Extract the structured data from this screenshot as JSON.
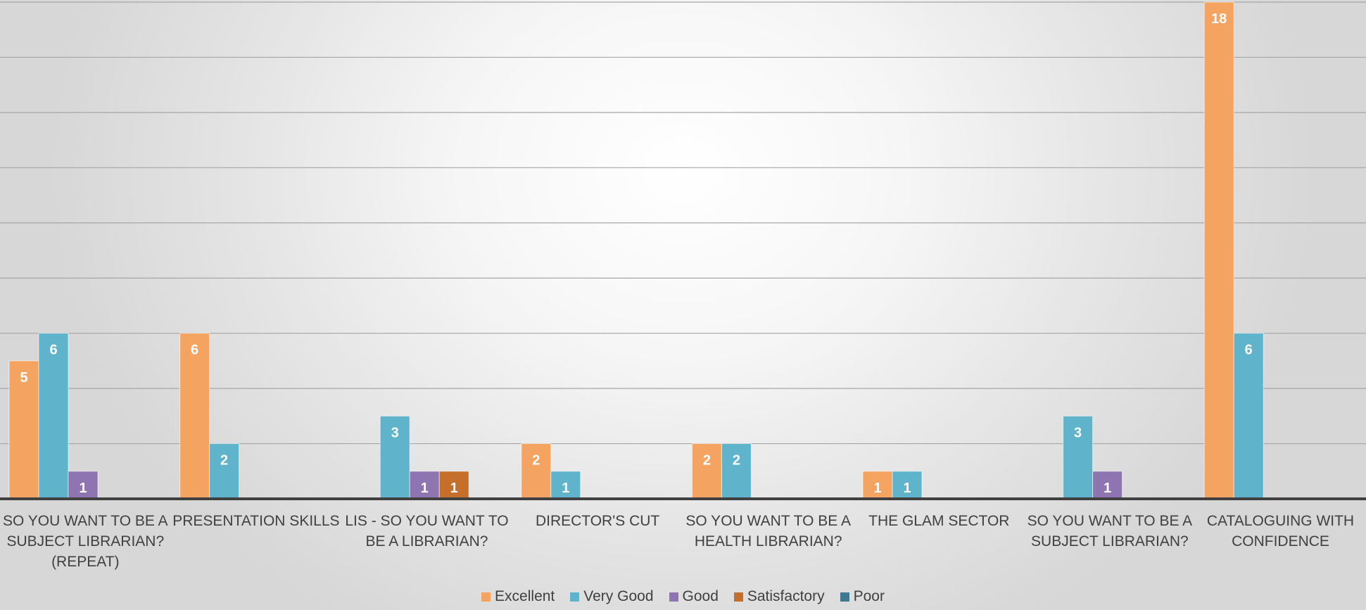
{
  "chart_data": {
    "type": "bar",
    "categories": [
      "SO YOU WANT TO BE A\nSUBJECT LIBRARIAN?\n(REPEAT)",
      "PRESENTATION SKILLS",
      "LIS - SO YOU WANT TO\nBE A LIBRARIAN?",
      "DIRECTOR'S CUT",
      "SO YOU WANT TO BE A\nHEALTH LIBRARIAN?",
      "THE GLAM SECTOR",
      "SO YOU WANT TO BE A\nSUBJECT LIBRARIAN?",
      "CATALOGUING WITH\nCONFIDENCE"
    ],
    "series": [
      {
        "name": "Excellent",
        "color": "#f4a460",
        "values": [
          5,
          6,
          null,
          2,
          2,
          1,
          null,
          18
        ]
      },
      {
        "name": "Very Good",
        "color": "#5fb3cb",
        "values": [
          6,
          2,
          3,
          1,
          2,
          1,
          3,
          6
        ]
      },
      {
        "name": "Good",
        "color": "#8e74b0",
        "values": [
          1,
          null,
          1,
          null,
          null,
          null,
          1,
          null
        ]
      },
      {
        "name": "Satisfactory",
        "color": "#c56f2c",
        "values": [
          null,
          null,
          1,
          null,
          null,
          null,
          null,
          null
        ]
      },
      {
        "name": "Poor",
        "color": "#3e7a8f",
        "values": [
          null,
          null,
          null,
          null,
          null,
          null,
          null,
          null
        ]
      }
    ],
    "ylim": [
      0,
      18
    ],
    "grid": true,
    "legend_position": "bottom",
    "data_labels": true
  }
}
